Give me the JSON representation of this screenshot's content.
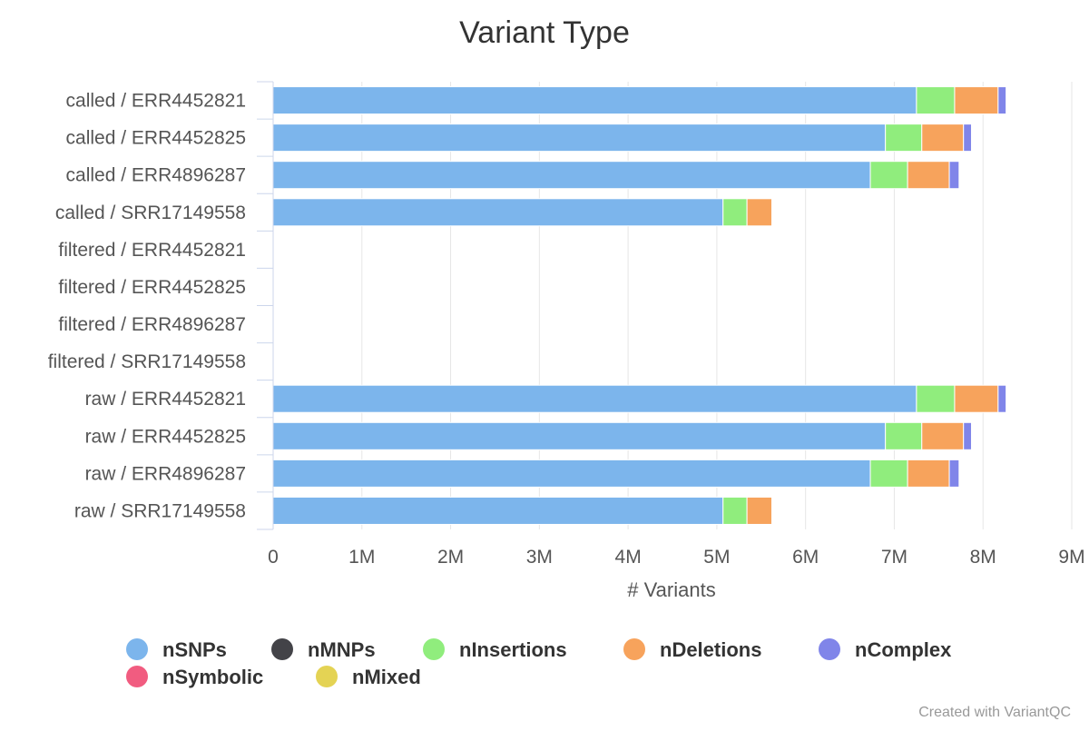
{
  "chart_data": {
    "type": "bar",
    "orientation": "horizontal",
    "stacked": true,
    "title": "Variant Type",
    "xlabel": "# Variants",
    "xlim": [
      0,
      9000000
    ],
    "x_ticks": [
      "0",
      "1M",
      "2M",
      "3M",
      "4M",
      "5M",
      "6M",
      "7M",
      "8M",
      "9M"
    ],
    "grid": true,
    "legend_position": "bottom",
    "categories": [
      "called / ERR4452821",
      "called / ERR4452825",
      "called / ERR4896287",
      "called / SRR17149558",
      "filtered / ERR4452821",
      "filtered / ERR4452825",
      "filtered / ERR4896287",
      "filtered / SRR17149558",
      "raw / ERR4452821",
      "raw / ERR4452825",
      "raw / ERR4896287",
      "raw / SRR17149558"
    ],
    "series": [
      {
        "name": "nSNPs",
        "color": "#7cb5ec",
        "values": [
          7250000,
          6900000,
          6730000,
          5070000,
          0,
          0,
          0,
          0,
          7250000,
          6900000,
          6730000,
          5070000
        ]
      },
      {
        "name": "nMNPs",
        "color": "#434348",
        "values": [
          0,
          0,
          0,
          0,
          0,
          0,
          0,
          0,
          0,
          0,
          0,
          0
        ]
      },
      {
        "name": "nInsertions",
        "color": "#90ed7d",
        "values": [
          430000,
          410000,
          420000,
          270000,
          0,
          0,
          0,
          0,
          430000,
          410000,
          420000,
          270000
        ]
      },
      {
        "name": "nDeletions",
        "color": "#f7a35c",
        "values": [
          490000,
          470000,
          470000,
          280000,
          0,
          0,
          0,
          0,
          490000,
          470000,
          470000,
          280000
        ]
      },
      {
        "name": "nComplex",
        "color": "#8085e9",
        "values": [
          90000,
          90000,
          110000,
          0,
          0,
          0,
          0,
          0,
          90000,
          90000,
          110000,
          0
        ]
      },
      {
        "name": "nSymbolic",
        "color": "#f15c80",
        "values": [
          0,
          0,
          0,
          0,
          0,
          0,
          0,
          0,
          0,
          0,
          0,
          0
        ]
      },
      {
        "name": "nMixed",
        "color": "#e4d354",
        "values": [
          0,
          0,
          0,
          0,
          0,
          0,
          0,
          0,
          0,
          0,
          0,
          0
        ]
      }
    ]
  },
  "credit": "Created with VariantQC"
}
